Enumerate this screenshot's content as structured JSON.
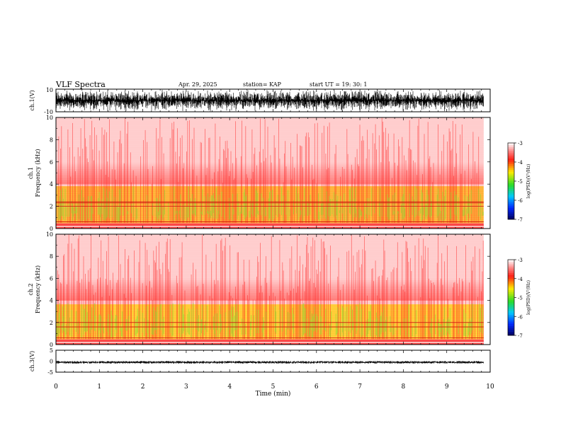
{
  "header": {
    "title": "VLF Spectra",
    "date": "Apr. 29, 2025",
    "station": "station= KAP",
    "start": "start  UT  =   19: 30: 1"
  },
  "chart_data": [
    {
      "type": "line",
      "ylabel": "ch.1(V)",
      "ylim": [
        -10,
        10
      ],
      "yticks": [
        "10",
        "-10"
      ],
      "description_values": {
        "amplitude_range": [
          -10,
          10
        ],
        "mean": 0
      }
    },
    {
      "type": "heatmap",
      "ylabel": "ch.1\nFrequency (kHz)",
      "ylabel_lines": [
        "ch.1",
        "Frequency (kHz)"
      ],
      "ylim": [
        0,
        10
      ],
      "yticks": [
        "0",
        "2",
        "4",
        "6",
        "8",
        "10"
      ],
      "colorbar": {
        "label": "log(PSD)(V²/Hz)",
        "range": [
          -7,
          -3
        ],
        "ticks": [
          "-3",
          "-4",
          "-5",
          "-6",
          "-7"
        ]
      },
      "intensity_bands_khz": [
        {
          "from": 0,
          "to": 0.5,
          "level": -3.5
        },
        {
          "from": 0.5,
          "to": 3.8,
          "level": -4.3
        },
        {
          "from": 3.8,
          "to": 10,
          "level": -3.2
        }
      ],
      "horizontal_lines_khz": [
        0.3,
        0.6,
        2.0,
        2.3,
        2.4
      ]
    },
    {
      "type": "heatmap",
      "ylabel": "ch.2\nFrequency (kHz)",
      "ylabel_lines": [
        "ch.2",
        "Frequency (kHz)"
      ],
      "ylim": [
        0,
        10
      ],
      "yticks": [
        "0",
        "2",
        "4",
        "6",
        "8",
        "10"
      ],
      "colorbar": {
        "label": "log(PSD)(V²/Hz)",
        "range": [
          -7,
          -3
        ],
        "ticks": [
          "-3",
          "-4",
          "-5",
          "-6",
          "-7"
        ]
      },
      "intensity_bands_khz": [
        {
          "from": 0,
          "to": 0.5,
          "level": -3.5
        },
        {
          "from": 0.5,
          "to": 3.6,
          "level": -4.4
        },
        {
          "from": 3.6,
          "to": 10,
          "level": -3.2
        }
      ],
      "horizontal_lines_khz": [
        0.3,
        0.6,
        1.6,
        2.0
      ]
    },
    {
      "type": "line",
      "ylabel": "ch.3(V)",
      "ylim": [
        -5,
        5
      ],
      "yticks": [
        "5",
        "0",
        "-5"
      ],
      "description_values": {
        "mean": -0.5,
        "amplitude": 0.6
      }
    }
  ],
  "xaxis": {
    "label": "Time (min)",
    "range": [
      0,
      10
    ],
    "ticks": [
      "0",
      "1",
      "2",
      "3",
      "4",
      "5",
      "6",
      "7",
      "8",
      "9",
      "10"
    ],
    "data_end": 9.85
  },
  "colors": {
    "trace": "#000000",
    "heat_high": "#ff2020",
    "heat_mid": "#ffe000",
    "heat_low": "#30e030"
  }
}
